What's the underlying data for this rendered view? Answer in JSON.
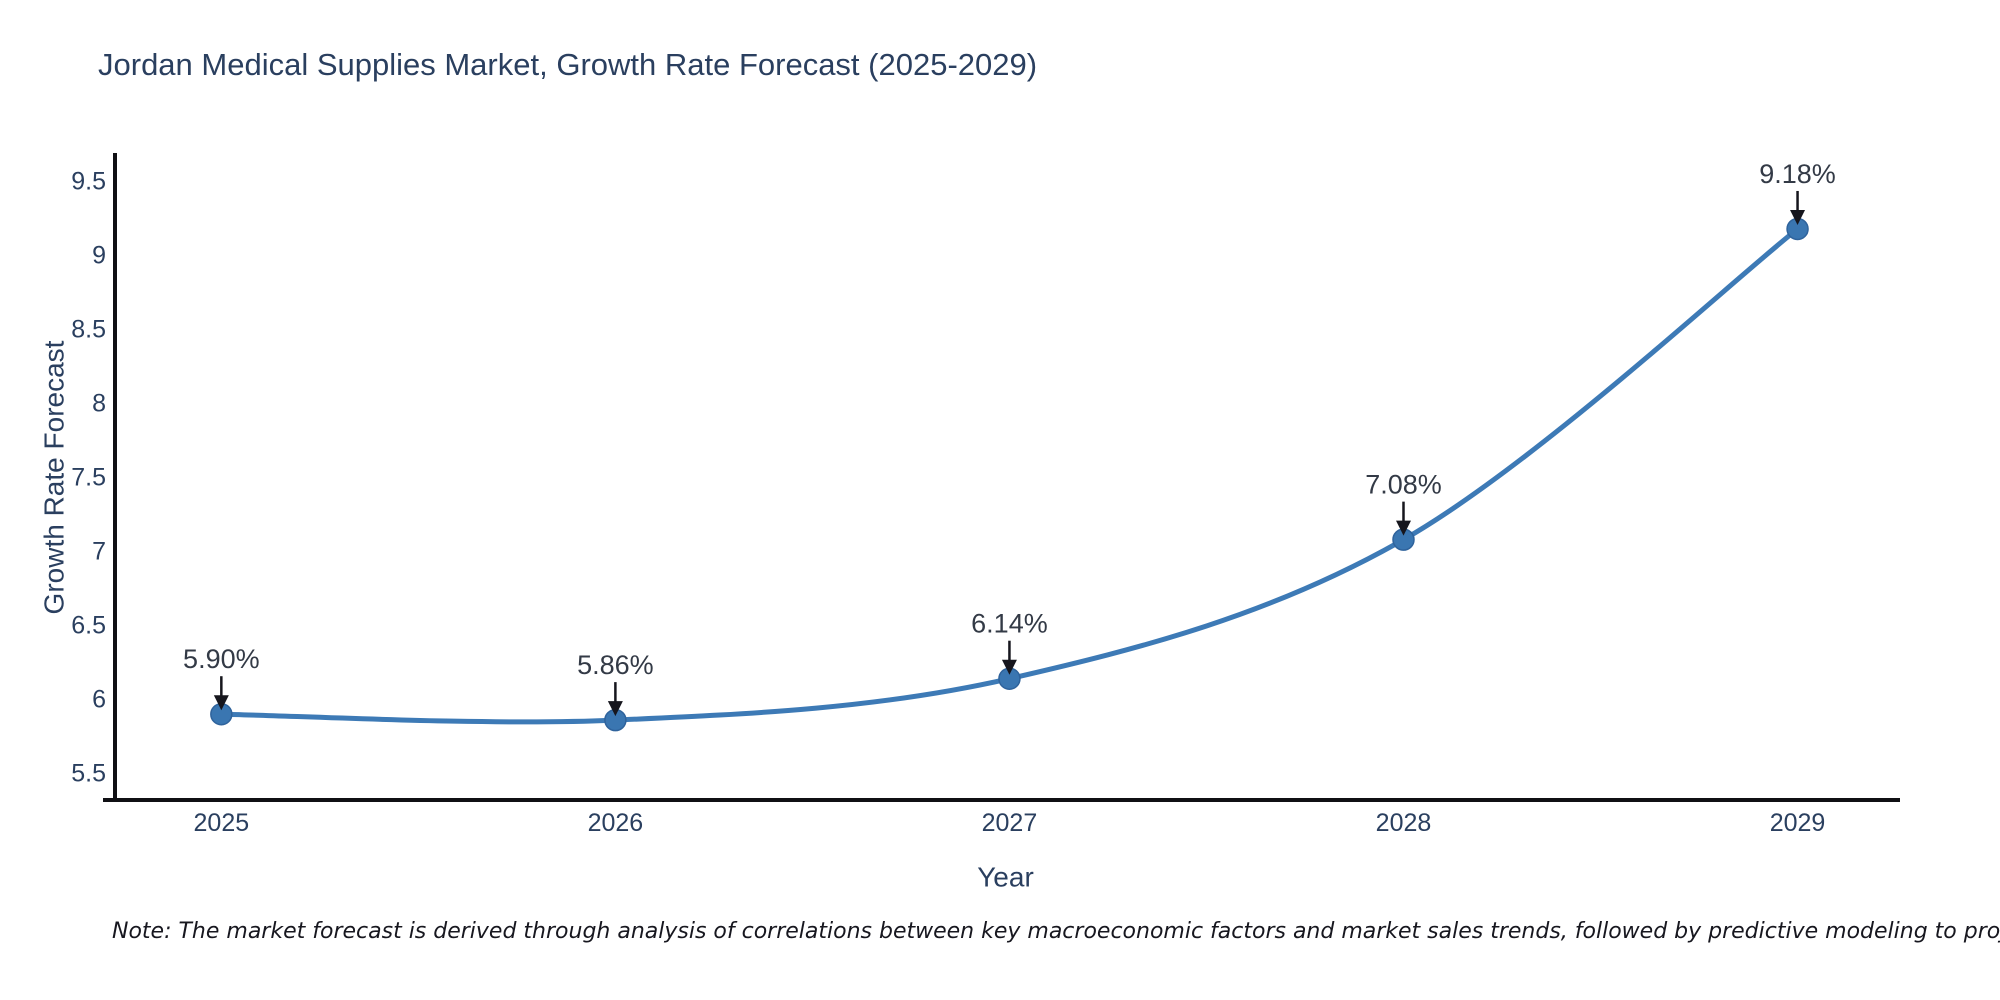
{
  "title": "Jordan Medical Supplies Market, Growth Rate Forecast (2025-2029)",
  "note": "Note: The market forecast is derived through analysis of correlations between key macroeconomic factors and market sales trends, followed by predictive modeling to project future sales",
  "chart_data": {
    "type": "line",
    "title": "Jordan Medical Supplies Market, Growth Rate Forecast (2025-2029)",
    "x": [
      "2025",
      "2026",
      "2027",
      "2028",
      "2029"
    ],
    "values": [
      5.9,
      5.86,
      6.14,
      7.08,
      9.18
    ],
    "point_labels": [
      "5.90%",
      "5.86%",
      "6.14%",
      "7.08%",
      "9.18%"
    ],
    "xlabel": "Year",
    "ylabel": "Growth Rate Forecast",
    "yticks": [
      5.5,
      6,
      6.5,
      7,
      7.5,
      8,
      8.5,
      9,
      9.5
    ],
    "ylim": [
      5.32,
      9.68
    ],
    "xlim_years": [
      2024.72,
      2029.26
    ],
    "line_shape": "spline",
    "grid": false,
    "legend": "none",
    "markers": true,
    "annotations_have_arrows": true,
    "colors": {
      "line": "#3d7ab6",
      "marker": "#3a76b1",
      "marker_edge": "#2f639c",
      "text": "#2a3f5f",
      "annotation_text": "#333a46",
      "arrow": "#16161d",
      "axis": "#101014",
      "background": "#ffffff"
    }
  }
}
